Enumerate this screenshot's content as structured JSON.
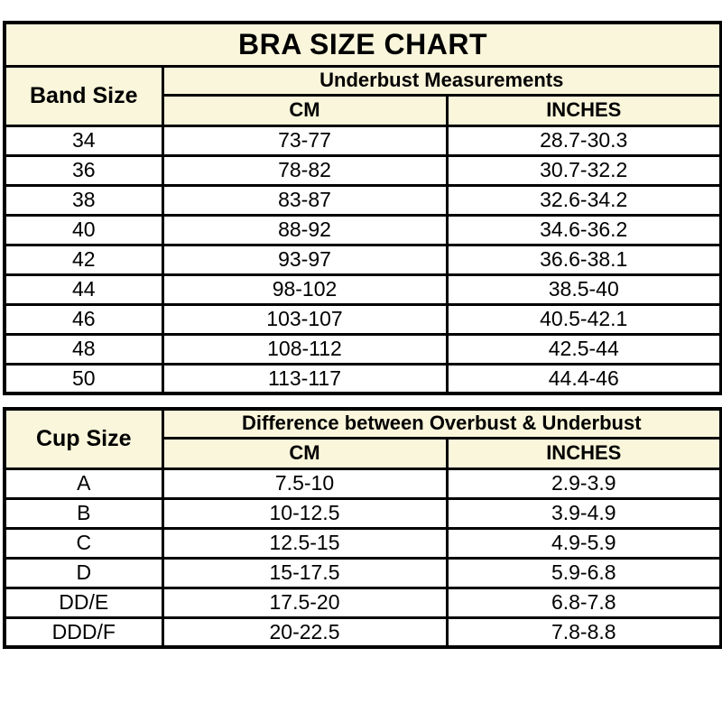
{
  "colors": {
    "header_bg": "#FAF6DB",
    "row_bg": "#FFFFFF",
    "border": "#000000",
    "text": "#000000",
    "page_bg": "#FFFFFF"
  },
  "chart_data": [
    {
      "type": "table",
      "title": "BRA SIZE CHART",
      "corner_header": "Band Size",
      "group_header": "Underbust Measurements",
      "col_headers": [
        "CM",
        "INCHES"
      ],
      "rows": [
        [
          "34",
          "73-77",
          "28.7-30.3"
        ],
        [
          "36",
          "78-82",
          "30.7-32.2"
        ],
        [
          "38",
          "83-87",
          "32.6-34.2"
        ],
        [
          "40",
          "88-92",
          "34.6-36.2"
        ],
        [
          "42",
          "93-97",
          "36.6-38.1"
        ],
        [
          "44",
          "98-102",
          "38.5-40"
        ],
        [
          "46",
          "103-107",
          "40.5-42.1"
        ],
        [
          "48",
          "108-112",
          "42.5-44"
        ],
        [
          "50",
          "113-117",
          "44.4-46"
        ]
      ]
    },
    {
      "type": "table",
      "title": "",
      "corner_header": "Cup Size",
      "group_header": "Difference between Overbust & Underbust",
      "col_headers": [
        "CM",
        "INCHES"
      ],
      "rows": [
        [
          "A",
          "7.5-10",
          "2.9-3.9"
        ],
        [
          "B",
          "10-12.5",
          "3.9-4.9"
        ],
        [
          "C",
          "12.5-15",
          "4.9-5.9"
        ],
        [
          "D",
          "15-17.5",
          "5.9-6.8"
        ],
        [
          "DD/E",
          "17.5-20",
          "6.8-7.8"
        ],
        [
          "DDD/F",
          "20-22.5",
          "7.8-8.8"
        ]
      ]
    }
  ]
}
